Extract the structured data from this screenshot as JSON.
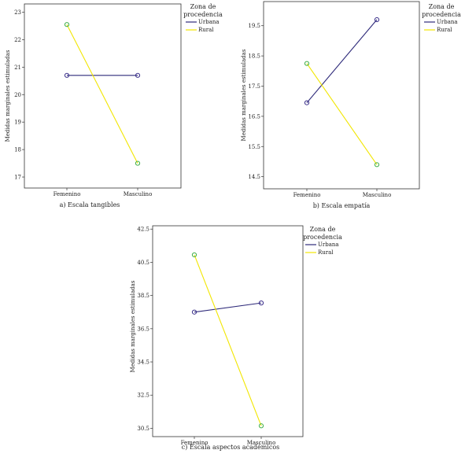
{
  "colors": {
    "urbana": "#2e2a7a",
    "rural": "#f2e600",
    "rural_marker": "#3fae49",
    "urbana_marker": "#3a2f8a"
  },
  "legend": {
    "title_line1": "Zona de",
    "title_line2": "procedencia",
    "items": [
      "Urbana",
      "Rural"
    ]
  },
  "chart_data": [
    {
      "type": "line",
      "caption": "a) Escala tangibles",
      "ylabel": "Medidas marginales estimuladas",
      "categories": [
        "Femenino",
        "Masculino"
      ],
      "ylim": [
        16.6,
        23.3
      ],
      "yticks": [
        17,
        18,
        19,
        20,
        21,
        22,
        23
      ],
      "ytick_labels": [
        "17",
        "18",
        "19",
        "20",
        "21",
        "22",
        "23"
      ],
      "series": [
        {
          "name": "Urbana",
          "values": [
            20.7,
            20.7
          ]
        },
        {
          "name": "Rural",
          "values": [
            22.55,
            17.5
          ]
        }
      ]
    },
    {
      "type": "line",
      "caption": "b) Escala empatía",
      "ylabel": "Medidas marginales estimuladas",
      "categories": [
        "Femenino",
        "Masculino"
      ],
      "ylim": [
        14.1,
        20.3
      ],
      "yticks": [
        14.5,
        15.5,
        16.5,
        17.5,
        18.5,
        19.5
      ],
      "ytick_labels": [
        "14.5",
        "15.5",
        "16.5",
        "17.5",
        "18.5",
        "19.5"
      ],
      "series": [
        {
          "name": "Urbana",
          "values": [
            16.95,
            19.7
          ]
        },
        {
          "name": "Rural",
          "values": [
            18.25,
            14.9
          ]
        }
      ]
    },
    {
      "type": "line",
      "caption": "c) Escala aspectos académicos",
      "ylabel": "Medidas marginales estimuladas",
      "categories": [
        "Femenino",
        "Masculino"
      ],
      "ylim": [
        30.0,
        42.7
      ],
      "yticks": [
        30.5,
        32.5,
        34.5,
        36.5,
        38.5,
        40.5,
        42.5
      ],
      "ytick_labels": [
        "30.5",
        "32.5",
        "34.5",
        "36.5",
        "38.5",
        "40.5",
        "42.5"
      ],
      "series": [
        {
          "name": "Urbana",
          "values": [
            37.5,
            38.05
          ]
        },
        {
          "name": "Rural",
          "values": [
            40.95,
            30.65
          ]
        }
      ]
    }
  ]
}
